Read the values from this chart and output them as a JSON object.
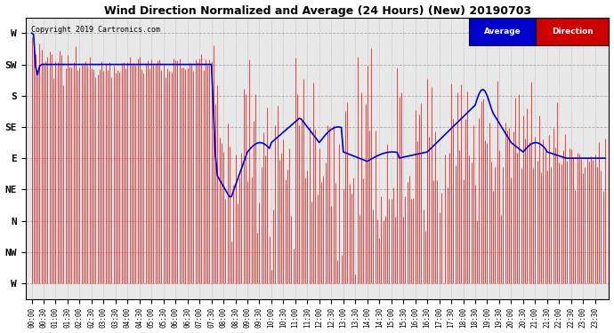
{
  "title": "Wind Direction Normalized and Average (24 Hours) (New) 20190703",
  "copyright": "Copyright 2019 Cartronics.com",
  "ytick_labels": [
    "W",
    "SW",
    "S",
    "SE",
    "E",
    "NE",
    "N",
    "NW",
    "W"
  ],
  "ytick_values": [
    8,
    7,
    6,
    5,
    4,
    3,
    2,
    1,
    0
  ],
  "ylim": [
    -0.5,
    8.5
  ],
  "background_color": "#e8e8e8",
  "grid_color": "#999999",
  "direction_color": "#ff0000",
  "average_color": "#0000cc",
  "legend_avg_bg": "#0000cc",
  "legend_dir_bg": "#cc0000",
  "legend_text_color": "#ffffff",
  "figwidth": 6.9,
  "figheight": 3.75,
  "dpi": 100
}
